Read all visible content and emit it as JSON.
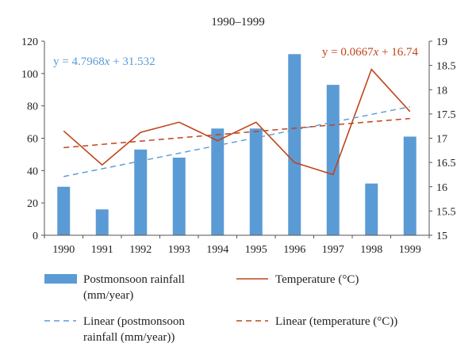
{
  "chart_data": {
    "type": "bar",
    "title": "1990–1999",
    "categories": [
      "1990",
      "1991",
      "1992",
      "1993",
      "1994",
      "1995",
      "1996",
      "1997",
      "1998",
      "1999"
    ],
    "series": [
      {
        "name": "Postmonsoon rainfall (mm/year)",
        "type": "bar",
        "axis": "left",
        "color": "#5b9bd5",
        "values": [
          30,
          16,
          53,
          48,
          66,
          66,
          112,
          93,
          32,
          61
        ]
      },
      {
        "name": "Temperature (°C)",
        "type": "line",
        "axis": "right",
        "color": "#c0441a",
        "values": [
          17.15,
          16.45,
          17.12,
          17.33,
          16.95,
          17.33,
          16.5,
          16.25,
          18.42,
          17.55
        ]
      }
    ],
    "trendlines": [
      {
        "name": "Linear (postmonsoon rainfall (mm/year))",
        "equation": "y = 4.7968x + 31.532",
        "slope": 4.7968,
        "intercept": 31.532,
        "axis": "left",
        "color": "#5b9bd5",
        "style": "dashed"
      },
      {
        "name": "Linear (temperature (°C))",
        "equation": "y = 0.0667x + 16.74",
        "slope": 0.0667,
        "intercept": 16.74,
        "axis": "right",
        "color": "#c0441a",
        "style": "dashed"
      }
    ],
    "y_left": {
      "min": 0,
      "max": 120,
      "ticks": [
        0,
        20,
        40,
        60,
        80,
        100,
        120
      ]
    },
    "y_right": {
      "min": 15,
      "max": 19,
      "ticks": [
        "15",
        "15.5",
        "16",
        "16.5",
        "17",
        "17.5",
        "18",
        "18.5",
        "19"
      ]
    },
    "grid": false,
    "legend_position": "bottom",
    "legend": [
      {
        "label_lines": [
          "Postmonsoon rainfall",
          "(mm/year)"
        ],
        "kind": "bar",
        "color": "#5b9bd5"
      },
      {
        "label_lines": [
          "Temperature (°C)"
        ],
        "kind": "line",
        "color": "#c0441a"
      },
      {
        "label_lines": [
          "Linear (postmonsoon",
          "rainfall (mm/year))"
        ],
        "kind": "dash",
        "color": "#5b9bd5"
      },
      {
        "label_lines": [
          "Linear (temperature (°C))"
        ],
        "kind": "dash",
        "color": "#c0441a"
      }
    ]
  }
}
